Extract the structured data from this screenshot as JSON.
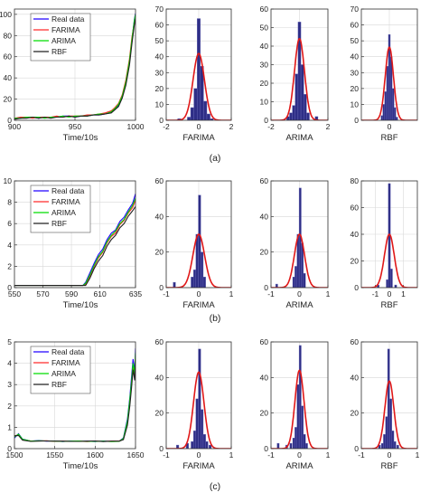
{
  "colors": {
    "real": "#2200ff",
    "farima": "#ff2a2a",
    "arima": "#00dd00",
    "rbf": "#222222",
    "bar_fill": "#2e2e86",
    "bar_edge": "#6a6ab8",
    "fit_curve": "#e01818",
    "grid": "#d8d8d8"
  },
  "chart_data": [
    {
      "type": "line",
      "panel": "a",
      "caption": "(a)",
      "xlabel": "Time/10s",
      "xlim": [
        900,
        1000
      ],
      "ylim": [
        0,
        105
      ],
      "xticks": [
        900,
        950,
        1000
      ],
      "yticks": [
        0,
        20,
        40,
        60,
        80,
        100
      ],
      "legend": [
        "Real data",
        "FARIMA",
        "ARIMA",
        "RBF"
      ],
      "x": [
        900,
        905,
        910,
        915,
        920,
        925,
        930,
        935,
        940,
        945,
        950,
        955,
        960,
        965,
        970,
        975,
        980,
        983,
        986,
        989,
        992,
        995,
        997,
        999,
        1000
      ],
      "series": [
        {
          "name": "Real data",
          "values": [
            2,
            2,
            3,
            3,
            2,
            3,
            3,
            3,
            4,
            4,
            3,
            4,
            4,
            5,
            5,
            6,
            8,
            10,
            14,
            22,
            35,
            55,
            75,
            95,
            101
          ]
        },
        {
          "name": "FARIMA",
          "values": [
            2,
            3,
            3,
            2,
            3,
            3,
            3,
            4,
            3,
            4,
            4,
            4,
            5,
            5,
            6,
            7,
            9,
            12,
            16,
            24,
            38,
            58,
            78,
            92,
            98
          ]
        },
        {
          "name": "ARIMA",
          "values": [
            2,
            2,
            3,
            3,
            3,
            2,
            3,
            3,
            4,
            3,
            4,
            4,
            4,
            5,
            6,
            6,
            8,
            11,
            15,
            23,
            36,
            56,
            76,
            94,
            100
          ]
        },
        {
          "name": "RBF",
          "values": [
            1,
            2,
            2,
            3,
            2,
            3,
            2,
            3,
            3,
            4,
            3,
            4,
            4,
            5,
            5,
            6,
            7,
            10,
            13,
            21,
            33,
            52,
            72,
            90,
            96
          ]
        }
      ]
    },
    {
      "type": "bar",
      "panel": "a",
      "xlabel": "FARIMA",
      "xlim": [
        -2,
        2
      ],
      "ylim": [
        0,
        70
      ],
      "xticks": [
        -2,
        0,
        2
      ],
      "yticks": [
        0,
        10,
        20,
        30,
        40,
        50,
        60,
        70
      ],
      "bin_width": 0.2,
      "bin_centers": [
        -1.2,
        -0.6,
        -0.4,
        -0.2,
        0,
        0.2,
        0.4,
        0.6,
        0.8
      ],
      "values": [
        1,
        2,
        8,
        20,
        64,
        34,
        12,
        4,
        1
      ],
      "fit": {
        "mean": 0,
        "sigma": 0.35,
        "peak": 42
      }
    },
    {
      "type": "bar",
      "panel": "a",
      "xlabel": "ARIMA",
      "xlim": [
        -2,
        2
      ],
      "ylim": [
        0,
        60
      ],
      "xticks": [
        -2,
        0,
        2
      ],
      "yticks": [
        0,
        10,
        20,
        30,
        40,
        50,
        60
      ],
      "bin_width": 0.2,
      "bin_centers": [
        -0.8,
        -0.6,
        -0.4,
        -0.2,
        0,
        0.2,
        0.4,
        0.6,
        1.2
      ],
      "values": [
        2,
        4,
        8,
        25,
        53,
        30,
        14,
        4,
        2
      ],
      "fit": {
        "mean": 0,
        "sigma": 0.35,
        "peak": 44
      }
    },
    {
      "type": "bar",
      "panel": "a",
      "xlabel": "RBF",
      "xlim": [
        -1.5,
        1.5
      ],
      "ylim": [
        0,
        70
      ],
      "xticks": [
        0
      ],
      "yticks": [
        0,
        10,
        20,
        30,
        40,
        50,
        60,
        70
      ],
      "bin_width": 0.1,
      "bin_centers": [
        -0.4,
        -0.3,
        -0.2,
        -0.1,
        0,
        0.1,
        0.2,
        0.3,
        0.4
      ],
      "values": [
        3,
        10,
        18,
        34,
        54,
        40,
        20,
        8,
        2
      ],
      "fit": {
        "mean": 0,
        "sigma": 0.22,
        "peak": 46
      }
    },
    {
      "type": "line",
      "panel": "b",
      "caption": "(b)",
      "xlabel": "Time/10s",
      "xlim": [
        550,
        635
      ],
      "ylim": [
        0,
        10
      ],
      "xticks": [
        550,
        570,
        590,
        610,
        635
      ],
      "yticks": [
        0,
        2,
        4,
        6,
        8,
        10
      ],
      "legend": [
        "Real data",
        "FARIMA",
        "ARIMA",
        "RBF"
      ],
      "x": [
        550,
        560,
        570,
        580,
        590,
        595,
        598,
        600,
        603,
        606,
        609,
        612,
        615,
        618,
        621,
        624,
        627,
        630,
        633,
        635
      ],
      "series": [
        {
          "name": "Real data",
          "values": [
            0.2,
            0.2,
            0.2,
            0.2,
            0.2,
            0.2,
            0.2,
            0.5,
            1.4,
            2.3,
            3.1,
            3.6,
            4.5,
            5.1,
            5.4,
            6.2,
            6.6,
            7.3,
            7.9,
            8.8
          ]
        },
        {
          "name": "FARIMA",
          "values": [
            0.2,
            0.2,
            0.2,
            0.2,
            0.2,
            0.2,
            0.2,
            0.3,
            1.1,
            2.0,
            2.8,
            3.3,
            4.2,
            4.8,
            5.1,
            5.9,
            6.3,
            7.0,
            7.5,
            8.2
          ]
        },
        {
          "name": "ARIMA",
          "values": [
            0.2,
            0.2,
            0.2,
            0.2,
            0.2,
            0.2,
            0.2,
            0.4,
            1.2,
            2.1,
            2.9,
            3.4,
            4.3,
            4.9,
            5.3,
            6.0,
            6.4,
            7.1,
            7.7,
            8.4
          ]
        },
        {
          "name": "RBF",
          "values": [
            0.2,
            0.2,
            0.2,
            0.2,
            0.2,
            0.2,
            0.2,
            0.2,
            0.9,
            1.8,
            2.5,
            3.0,
            3.9,
            4.5,
            4.9,
            5.6,
            6.0,
            6.7,
            7.2,
            7.6
          ]
        }
      ]
    },
    {
      "type": "bar",
      "panel": "b",
      "xlabel": "FARIMA",
      "xlim": [
        -1,
        1
      ],
      "ylim": [
        0,
        60
      ],
      "xticks": [
        -1,
        0,
        1
      ],
      "yticks": [
        0,
        20,
        40,
        60
      ],
      "bin_width": 0.075,
      "bin_centers": [
        -0.75,
        -0.2,
        -0.125,
        -0.05,
        0.025,
        0.1,
        0.175
      ],
      "values": [
        3,
        6,
        10,
        30,
        52,
        20,
        6
      ],
      "fit": {
        "mean": 0,
        "sigma": 0.18,
        "peak": 30
      }
    },
    {
      "type": "bar",
      "panel": "b",
      "xlabel": "ARIMA",
      "xlim": [
        -1,
        1
      ],
      "ylim": [
        0,
        60
      ],
      "xticks": [
        -1,
        0,
        1
      ],
      "yticks": [
        0,
        20,
        40,
        60
      ],
      "bin_width": 0.075,
      "bin_centers": [
        -0.8,
        -0.2,
        -0.125,
        -0.05,
        0.025,
        0.1,
        0.175
      ],
      "values": [
        2,
        6,
        12,
        30,
        56,
        25,
        8
      ],
      "fit": {
        "mean": 0,
        "sigma": 0.18,
        "peak": 30
      }
    },
    {
      "type": "bar",
      "panel": "b",
      "xlabel": "RBF",
      "xlim": [
        -2,
        2
      ],
      "ylim": [
        0,
        80
      ],
      "xticks": [
        -1,
        0,
        1
      ],
      "yticks": [
        0,
        20,
        40,
        60,
        80
      ],
      "bin_width": 0.15,
      "bin_centers": [
        -0.8,
        -0.15,
        0,
        0.15,
        0.45
      ],
      "values": [
        2,
        6,
        78,
        14,
        2
      ],
      "fit": {
        "mean": 0,
        "sigma": 0.35,
        "peak": 40
      }
    },
    {
      "type": "line",
      "panel": "c",
      "caption": "(c)",
      "xlabel": "Time/10s",
      "xlim": [
        1500,
        1650
      ],
      "ylim": [
        0,
        5
      ],
      "xticks": [
        1500,
        1550,
        1600,
        1650
      ],
      "yticks": [
        0,
        1,
        2,
        3,
        4,
        5
      ],
      "legend": [
        "Real data",
        "FARIMA",
        "ARIMA",
        "RBF"
      ],
      "x": [
        1500,
        1505,
        1510,
        1520,
        1530,
        1540,
        1550,
        1560,
        1570,
        1580,
        1590,
        1600,
        1610,
        1620,
        1630,
        1635,
        1640,
        1643,
        1645,
        1647,
        1649,
        1650
      ],
      "series": [
        {
          "name": "Real data",
          "values": [
            0.5,
            0.7,
            0.45,
            0.35,
            0.38,
            0.35,
            0.36,
            0.33,
            0.36,
            0.34,
            0.35,
            0.33,
            0.36,
            0.34,
            0.35,
            0.5,
            1.4,
            2.4,
            3.3,
            4.2,
            3.6,
            4.7
          ]
        },
        {
          "name": "FARIMA",
          "values": [
            0.6,
            0.65,
            0.42,
            0.36,
            0.36,
            0.37,
            0.34,
            0.35,
            0.34,
            0.35,
            0.33,
            0.35,
            0.34,
            0.35,
            0.36,
            0.45,
            1.2,
            2.2,
            3.0,
            3.9,
            3.4,
            4.4
          ]
        },
        {
          "name": "ARIMA",
          "values": [
            0.55,
            0.68,
            0.44,
            0.35,
            0.37,
            0.36,
            0.35,
            0.34,
            0.35,
            0.36,
            0.34,
            0.34,
            0.35,
            0.33,
            0.34,
            0.48,
            1.3,
            2.3,
            3.1,
            4.0,
            3.5,
            4.5
          ]
        },
        {
          "name": "RBF",
          "values": [
            0.6,
            0.62,
            0.4,
            0.34,
            0.35,
            0.36,
            0.35,
            0.35,
            0.34,
            0.34,
            0.35,
            0.36,
            0.33,
            0.35,
            0.35,
            0.42,
            1.1,
            2.0,
            2.8,
            3.7,
            3.2,
            4.2
          ]
        }
      ]
    },
    {
      "type": "bar",
      "panel": "c",
      "xlabel": "FARIMA",
      "xlim": [
        -1,
        1
      ],
      "ylim": [
        0,
        60
      ],
      "xticks": [
        -1,
        0,
        1
      ],
      "yticks": [
        0,
        20,
        40,
        60
      ],
      "bin_width": 0.075,
      "bin_centers": [
        -0.65,
        -0.35,
        -0.2,
        -0.125,
        -0.05,
        0.025,
        0.1,
        0.175,
        0.25,
        0.35
      ],
      "values": [
        2,
        3,
        4,
        10,
        28,
        56,
        22,
        8,
        4,
        2
      ],
      "fit": {
        "mean": 0,
        "sigma": 0.16,
        "peak": 43
      }
    },
    {
      "type": "bar",
      "panel": "c",
      "xlabel": "ARIMA",
      "xlim": [
        -1,
        1
      ],
      "ylim": [
        0,
        60
      ],
      "xticks": [
        -1,
        0,
        1
      ],
      "yticks": [
        0,
        20,
        40,
        60
      ],
      "bin_width": 0.075,
      "bin_centers": [
        -0.75,
        -0.45,
        -0.3,
        -0.2,
        -0.125,
        -0.05,
        0.025,
        0.1,
        0.175,
        0.25
      ],
      "values": [
        3,
        2,
        3,
        6,
        12,
        36,
        58,
        24,
        8,
        3
      ],
      "fit": {
        "mean": 0,
        "sigma": 0.16,
        "peak": 44
      }
    },
    {
      "type": "bar",
      "panel": "c",
      "xlabel": "RBF",
      "xlim": [
        -1,
        1
      ],
      "ylim": [
        0,
        60
      ],
      "xticks": [
        -1,
        0,
        1
      ],
      "yticks": [
        0,
        20,
        40,
        60
      ],
      "bin_width": 0.075,
      "bin_centers": [
        -0.35,
        -0.25,
        -0.175,
        -0.1,
        -0.025,
        0.05,
        0.125,
        0.2,
        0.3
      ],
      "values": [
        2,
        3,
        8,
        18,
        56,
        28,
        10,
        4,
        2
      ],
      "fit": {
        "mean": 0,
        "sigma": 0.16,
        "peak": 38
      }
    }
  ]
}
